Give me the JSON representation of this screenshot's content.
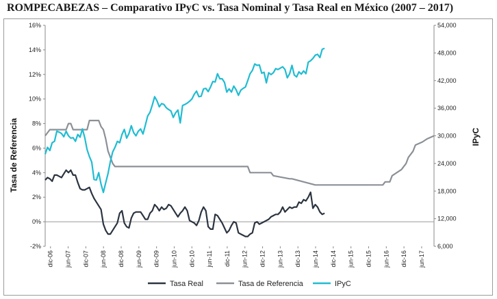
{
  "title": "ROMPECABEZAS – Comparativo IPyC vs. Tasa Nominal y Tasa Real en México (2007 – 2017)",
  "chart_data": {
    "type": "line",
    "title": "ROMPECABEZAS – Comparativo IPyC vs. Tasa Nominal y Tasa Real en México (2007 – 2017)",
    "ylabel": "Tasa  de Referencia",
    "y2label": "IPyC",
    "ylim": [
      -2,
      16
    ],
    "y2lim": [
      6000,
      54000
    ],
    "yticks": [
      "-2%",
      "0%",
      "2%",
      "4%",
      "6%",
      "8%",
      "10%",
      "12%",
      "14%",
      "16%"
    ],
    "y2ticks": [
      "6,000",
      "12,000",
      "18,000",
      "24,000",
      "30,000",
      "36,000",
      "42,000",
      "48,000",
      "54,000"
    ],
    "xticks": [
      "dic-06",
      "jun-07",
      "dic-07",
      "jun-08",
      "dic-08",
      "jun-09",
      "dic-09",
      "jun-10",
      "dic-10",
      "jun-11",
      "dic-11",
      "jun-12",
      "dic-12",
      "jun-13",
      "dic-13",
      "jun-14",
      "dic-14",
      "jun-15",
      "dic-15",
      "jun-16",
      "dic-16",
      "jun-17"
    ],
    "legend_position": "bottom",
    "grid": false,
    "series": [
      {
        "name": "Tasa Real",
        "axis": "left",
        "color": "#2b3440",
        "points": [
          [
            0,
            3.4
          ],
          [
            1,
            3.6
          ],
          [
            2,
            3.5
          ],
          [
            3,
            3.3
          ],
          [
            4,
            3.8
          ],
          [
            5,
            3.8
          ],
          [
            6,
            3.7
          ],
          [
            7,
            3.6
          ],
          [
            8,
            3.9
          ],
          [
            9,
            4.2
          ],
          [
            10,
            4.0
          ],
          [
            11,
            4.2
          ],
          [
            12,
            3.8
          ],
          [
            13,
            3.8
          ],
          [
            14,
            3.2
          ],
          [
            15,
            2.7
          ],
          [
            16,
            2.6
          ],
          [
            17,
            2.6
          ],
          [
            18,
            2.7
          ],
          [
            19,
            2.8
          ],
          [
            20,
            2.3
          ],
          [
            21,
            1.9
          ],
          [
            22,
            1.6
          ],
          [
            23,
            1.3
          ],
          [
            24,
            1.0
          ],
          [
            25,
            -0.2
          ],
          [
            26,
            -0.7
          ],
          [
            27,
            -1.0
          ],
          [
            28,
            -1.0
          ],
          [
            29,
            -0.7
          ],
          [
            30,
            -0.4
          ],
          [
            31,
            -0.1
          ],
          [
            32,
            0.7
          ],
          [
            33,
            0.9
          ],
          [
            34,
            -0.1
          ],
          [
            35,
            -0.4
          ],
          [
            36,
            -0.5
          ],
          [
            37,
            0.3
          ],
          [
            38,
            0.7
          ],
          [
            39,
            0.8
          ],
          [
            40,
            0.8
          ],
          [
            41,
            0.8
          ],
          [
            42,
            0.5
          ],
          [
            43,
            0.2
          ],
          [
            44,
            0.2
          ],
          [
            45,
            0.7
          ],
          [
            46,
            0.9
          ],
          [
            47,
            1.4
          ],
          [
            48,
            1.2
          ],
          [
            49,
            0.9
          ],
          [
            50,
            1.2
          ],
          [
            51,
            1.0
          ],
          [
            52,
            1.1
          ],
          [
            53,
            1.4
          ],
          [
            54,
            1.3
          ],
          [
            55,
            1.0
          ],
          [
            56,
            0.7
          ],
          [
            57,
            0.4
          ],
          [
            58,
            0.7
          ],
          [
            59,
            0.9
          ],
          [
            60,
            1.2
          ],
          [
            61,
            0.9
          ],
          [
            62,
            0.1
          ],
          [
            63,
            0.0
          ],
          [
            64,
            -0.1
          ],
          [
            65,
            -0.3
          ],
          [
            66,
            0.1
          ],
          [
            67,
            0.8
          ],
          [
            68,
            1.2
          ],
          [
            69,
            0.9
          ],
          [
            70,
            -0.4
          ],
          [
            71,
            -0.6
          ],
          [
            72,
            -0.6
          ],
          [
            73,
            0.6
          ],
          [
            74,
            0.5
          ],
          [
            75,
            0.2
          ],
          [
            76,
            -0.1
          ],
          [
            77,
            -0.5
          ],
          [
            78,
            -0.9
          ],
          [
            79,
            -0.7
          ],
          [
            80,
            -0.3
          ],
          [
            81,
            0.0
          ],
          [
            82,
            -0.1
          ],
          [
            83,
            -0.9
          ],
          [
            84,
            -1.0
          ],
          [
            85,
            -1.1
          ],
          [
            86,
            -1.2
          ],
          [
            87,
            -1.2
          ],
          [
            88,
            -1.0
          ],
          [
            89,
            -0.9
          ],
          [
            90,
            -0.1
          ],
          [
            91,
            0.0
          ],
          [
            92,
            -0.2
          ],
          [
            93,
            -0.1
          ],
          [
            94,
            0.0
          ],
          [
            95,
            0.1
          ],
          [
            96,
            0.2
          ],
          [
            97,
            0.4
          ],
          [
            98,
            0.5
          ],
          [
            99,
            0.6
          ],
          [
            100,
            0.6
          ],
          [
            101,
            0.8
          ],
          [
            102,
            1.2
          ],
          [
            103,
            0.8
          ],
          [
            104,
            1.0
          ],
          [
            105,
            1.2
          ],
          [
            106,
            1.1
          ],
          [
            107,
            1.2
          ],
          [
            108,
            1.2
          ],
          [
            109,
            1.6
          ],
          [
            110,
            1.5
          ],
          [
            111,
            1.8
          ],
          [
            112,
            1.7
          ],
          [
            113,
            2.0
          ],
          [
            114,
            2.4
          ],
          [
            115,
            1.1
          ],
          [
            116,
            1.4
          ],
          [
            117,
            1.2
          ],
          [
            118,
            0.8
          ],
          [
            119,
            0.6
          ],
          [
            120,
            0.7
          ]
        ]
      },
      {
        "name": "Tasa de Referencia",
        "axis": "left",
        "color": "#8a9096",
        "points": [
          [
            0,
            7.0
          ],
          [
            2,
            7.5
          ],
          [
            5,
            7.5
          ],
          [
            6,
            7.5
          ],
          [
            7,
            7.5
          ],
          [
            8,
            7.5
          ],
          [
            9,
            7.5
          ],
          [
            10,
            8.0
          ],
          [
            11,
            8.0
          ],
          [
            12,
            7.5
          ],
          [
            18,
            7.5
          ],
          [
            19,
            8.25
          ],
          [
            23,
            8.25
          ],
          [
            24,
            7.75
          ],
          [
            25,
            7.5
          ],
          [
            26,
            6.75
          ],
          [
            27,
            5.75
          ],
          [
            28,
            5.25
          ],
          [
            29,
            4.75
          ],
          [
            30,
            4.5
          ],
          [
            31,
            4.5
          ],
          [
            87,
            4.5
          ],
          [
            88,
            4.0
          ],
          [
            97,
            4.0
          ],
          [
            98,
            3.75
          ],
          [
            105,
            3.5
          ],
          [
            106,
            3.5
          ],
          [
            116,
            3.0
          ],
          [
            117,
            3.0
          ],
          [
            139,
            3.0
          ],
          [
            140,
            3.0
          ],
          [
            145,
            3.0
          ],
          [
            146,
            3.25
          ],
          [
            148,
            3.25
          ],
          [
            149,
            3.75
          ],
          [
            153,
            4.25
          ],
          [
            155,
            4.75
          ],
          [
            156,
            5.25
          ],
          [
            158,
            5.75
          ],
          [
            159,
            6.25
          ],
          [
            162,
            6.5
          ],
          [
            164,
            6.75
          ],
          [
            167,
            7.0
          ]
        ]
      },
      {
        "name": "IPyC",
        "axis": "right",
        "color": "#1fbcd2",
        "points": [
          [
            0,
            26000
          ],
          [
            1,
            27500
          ],
          [
            2,
            26800
          ],
          [
            3,
            28500
          ],
          [
            4,
            28800
          ],
          [
            5,
            31000
          ],
          [
            6,
            30800
          ],
          [
            7,
            30500
          ],
          [
            8,
            29800
          ],
          [
            9,
            31000
          ],
          [
            10,
            30000
          ],
          [
            11,
            29500
          ],
          [
            12,
            29600
          ],
          [
            13,
            28800
          ],
          [
            14,
            30300
          ],
          [
            15,
            29700
          ],
          [
            16,
            31500
          ],
          [
            17,
            29600
          ],
          [
            18,
            27000
          ],
          [
            19,
            25500
          ],
          [
            20,
            24300
          ],
          [
            21,
            20500
          ],
          [
            22,
            20400
          ],
          [
            23,
            22000
          ],
          [
            24,
            19500
          ],
          [
            25,
            17700
          ],
          [
            26,
            19800
          ],
          [
            27,
            21800
          ],
          [
            28,
            24400
          ],
          [
            29,
            26500
          ],
          [
            30,
            27500
          ],
          [
            31,
            28800
          ],
          [
            32,
            28500
          ],
          [
            33,
            30300
          ],
          [
            34,
            31400
          ],
          [
            35,
            29500
          ],
          [
            36,
            30500
          ],
          [
            37,
            32200
          ],
          [
            38,
            30700
          ],
          [
            39,
            30000
          ],
          [
            40,
            31000
          ],
          [
            41,
            31500
          ],
          [
            42,
            30400
          ],
          [
            43,
            32300
          ],
          [
            44,
            34300
          ],
          [
            45,
            35100
          ],
          [
            46,
            36700
          ],
          [
            47,
            38500
          ],
          [
            48,
            37600
          ],
          [
            49,
            36300
          ],
          [
            50,
            37000
          ],
          [
            51,
            36800
          ],
          [
            52,
            36100
          ],
          [
            53,
            35700
          ],
          [
            54,
            35400
          ],
          [
            55,
            34000
          ],
          [
            56,
            35000
          ],
          [
            57,
            35600
          ],
          [
            58,
            32800
          ],
          [
            59,
            36600
          ],
          [
            60,
            36800
          ],
          [
            61,
            37100
          ],
          [
            62,
            37500
          ],
          [
            63,
            38000
          ],
          [
            64,
            39000
          ],
          [
            65,
            39700
          ],
          [
            66,
            38500
          ],
          [
            67,
            38600
          ],
          [
            68,
            40200
          ],
          [
            69,
            40300
          ],
          [
            70,
            39600
          ],
          [
            71,
            40600
          ],
          [
            72,
            41800
          ],
          [
            73,
            41700
          ],
          [
            74,
            43500
          ],
          [
            75,
            42400
          ],
          [
            76,
            42400
          ],
          [
            77,
            41600
          ],
          [
            78,
            39500
          ],
          [
            79,
            40200
          ],
          [
            80,
            39500
          ],
          [
            81,
            40800
          ],
          [
            82,
            40000
          ],
          [
            83,
            38800
          ],
          [
            84,
            39900
          ],
          [
            85,
            40300
          ],
          [
            86,
            40600
          ],
          [
            87,
            42000
          ],
          [
            88,
            43500
          ],
          [
            89,
            44200
          ],
          [
            90,
            45600
          ],
          [
            91,
            45300
          ],
          [
            92,
            45400
          ],
          [
            93,
            43600
          ],
          [
            94,
            43800
          ],
          [
            95,
            41500
          ],
          [
            96,
            43700
          ],
          [
            97,
            43300
          ],
          [
            98,
            43700
          ],
          [
            99,
            44600
          ],
          [
            100,
            44400
          ],
          [
            101,
            44700
          ],
          [
            102,
            45000
          ],
          [
            103,
            44400
          ],
          [
            104,
            42600
          ],
          [
            105,
            43500
          ],
          [
            106,
            45300
          ],
          [
            107,
            43200
          ],
          [
            108,
            42800
          ],
          [
            109,
            43900
          ],
          [
            110,
            43400
          ],
          [
            111,
            44100
          ],
          [
            112,
            43500
          ],
          [
            113,
            46000
          ],
          [
            114,
            46300
          ],
          [
            115,
            46800
          ],
          [
            116,
            47500
          ],
          [
            117,
            47700
          ],
          [
            118,
            47000
          ],
          [
            119,
            48800
          ],
          [
            120,
            49000
          ]
        ]
      }
    ]
  }
}
